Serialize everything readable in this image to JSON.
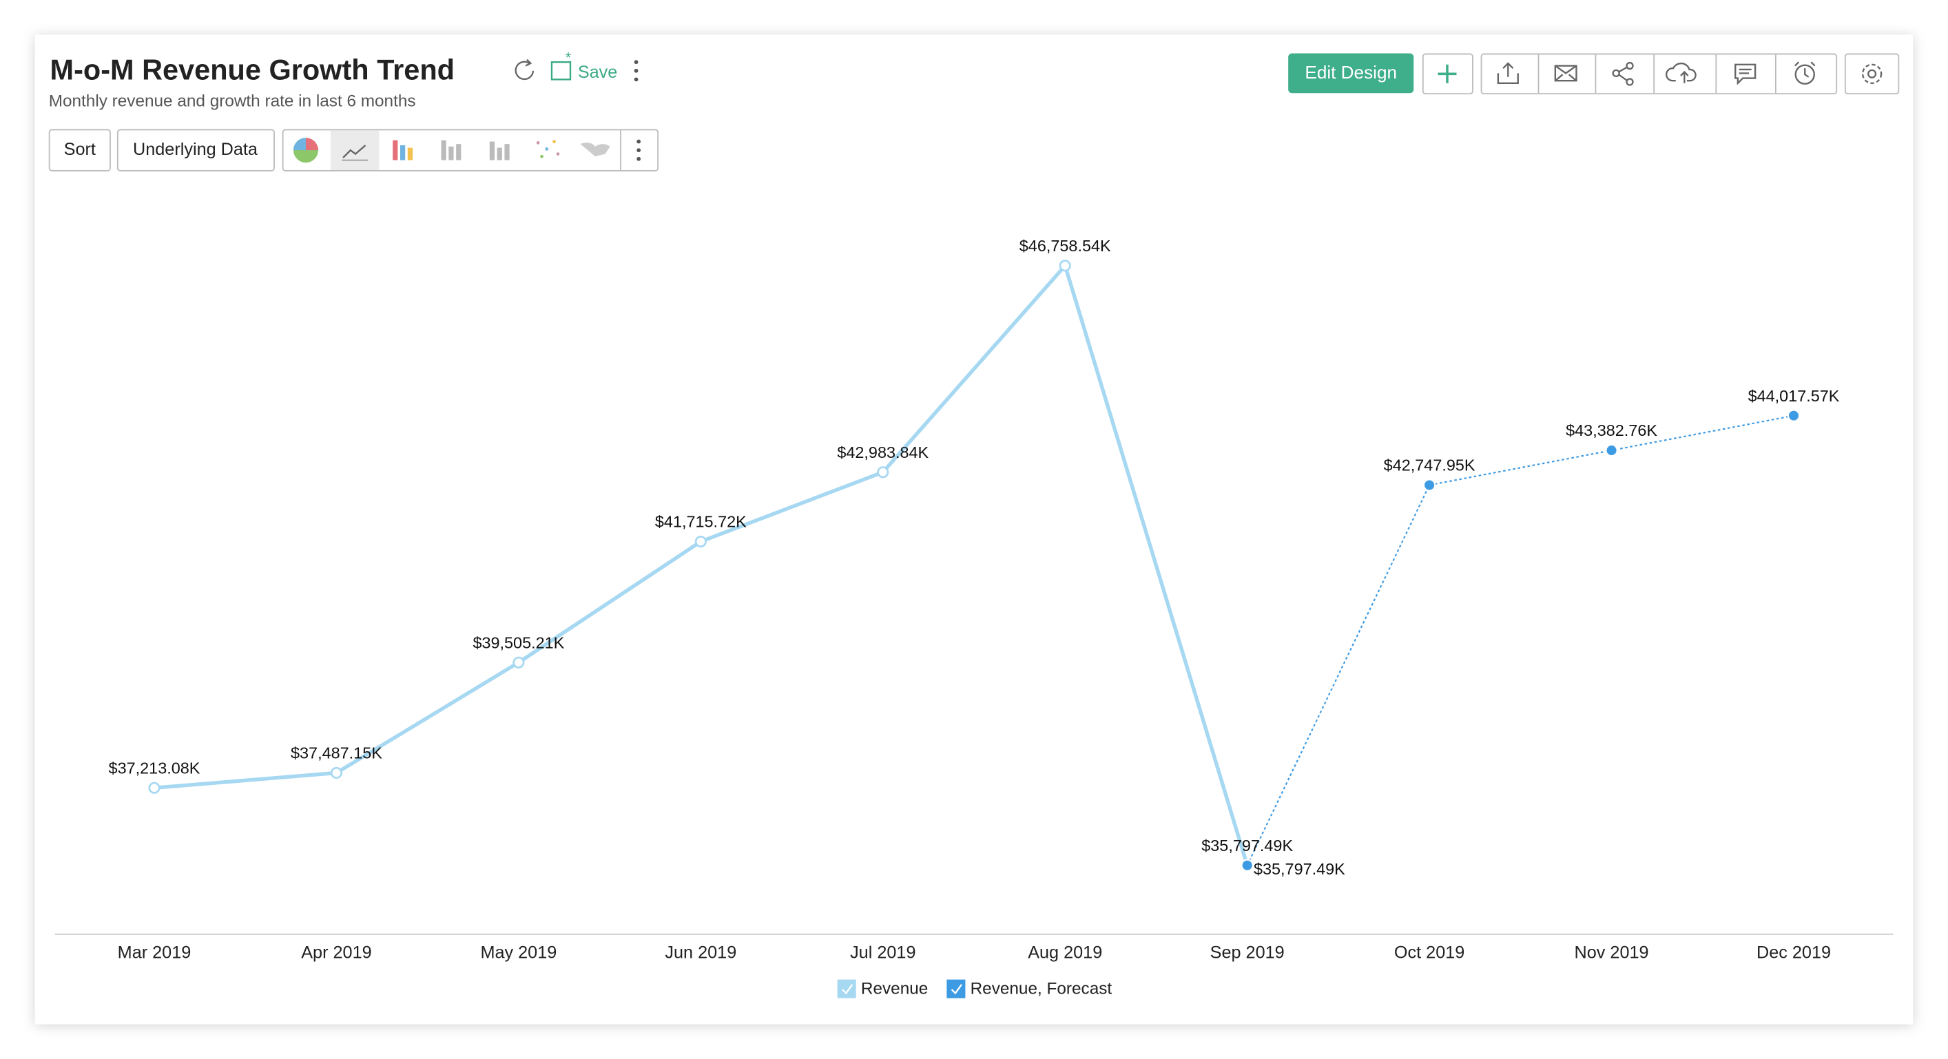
{
  "ui": {
    "save": "Save",
    "sort": "Sort",
    "underlying_data": "Underlying Data",
    "edit_design": "Edit Design"
  },
  "chart_data": {
    "type": "line",
    "title": "M-o-M Revenue Growth Trend",
    "subtitle": "Monthly revenue and growth rate in last 6 months",
    "categories": [
      "Mar 2019",
      "Apr 2019",
      "May 2019",
      "Jun 2019",
      "Jul 2019",
      "Aug 2019",
      "Sep 2019",
      "Oct 2019",
      "Nov 2019",
      "Dec 2019"
    ],
    "series": [
      {
        "name": "Revenue",
        "color": "#a6d8f2",
        "values": [
          37213.08,
          37487.15,
          39505.21,
          41715.72,
          42983.84,
          46758.54,
          35797.49,
          null,
          null,
          null
        ],
        "value_labels": [
          "$37,213.08K",
          "$37,487.15K",
          "$39,505.21K",
          "$41,715.72K",
          "$42,983.84K",
          "$46,758.54K",
          "$35,797.49K",
          null,
          null,
          null
        ]
      },
      {
        "name": "Revenue, Forecast",
        "color": "#3d9be3",
        "values": [
          null,
          null,
          null,
          null,
          null,
          null,
          35797.49,
          42747.95,
          43382.76,
          44017.57
        ],
        "value_labels": [
          null,
          null,
          null,
          null,
          null,
          null,
          "$35,797.49K",
          "$42,747.95K",
          "$43,382.76K",
          "$44,017.57K"
        ]
      }
    ]
  }
}
